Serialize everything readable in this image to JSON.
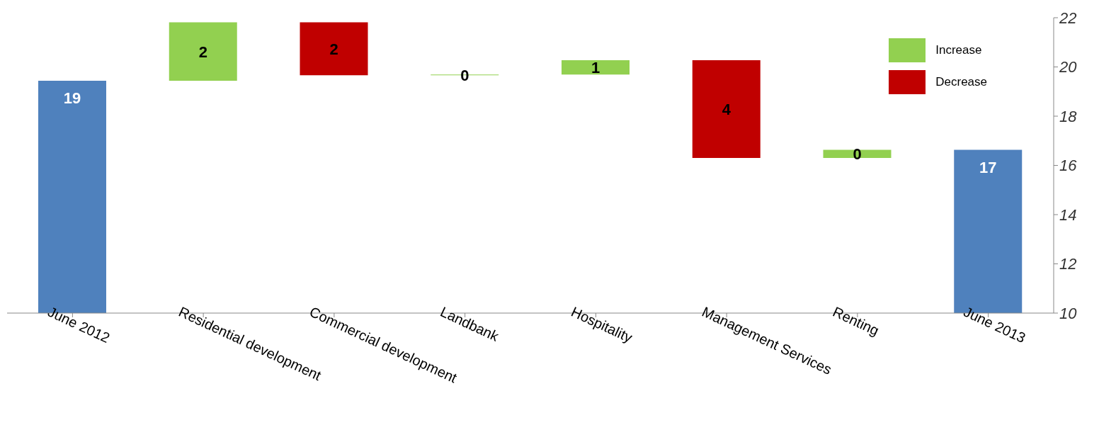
{
  "chart_data": {
    "type": "bar",
    "categories": [
      "June 2012",
      "Residential development",
      "Commercial development",
      "Landbank",
      "Hospitality",
      "Management Services",
      "Renting",
      "June 2013"
    ],
    "series": [
      {
        "color": "#4f81bd",
        "values": [
          19.44,
          null,
          null,
          null,
          null,
          null,
          null,
          16.63
        ],
        "value_labels": [
          "19",
          null,
          null,
          null,
          null,
          null,
          null,
          "17"
        ]
      },
      {
        "name": "Increase",
        "color": "#92d050",
        "values": [
          null,
          2.37,
          null,
          0.03,
          0.58,
          null,
          0.33,
          null
        ],
        "base": [
          null,
          19.44,
          null,
          19.66,
          19.69,
          null,
          16.3,
          null
        ],
        "value_labels": [
          null,
          "2",
          null,
          "0",
          "1",
          null,
          "0",
          null
        ]
      },
      {
        "name": "Decrease",
        "color": "#c00000",
        "values": [
          null,
          null,
          2.15,
          null,
          null,
          3.97,
          null,
          null
        ],
        "base": [
          null,
          null,
          19.66,
          null,
          null,
          16.3,
          null,
          null
        ],
        "value_labels": [
          null,
          null,
          "2",
          null,
          null,
          "4",
          null,
          null
        ]
      }
    ],
    "ylim": [
      10,
      22
    ],
    "yticks": [
      10,
      12,
      14,
      16,
      18,
      20,
      22
    ],
    "legend": "top right"
  }
}
